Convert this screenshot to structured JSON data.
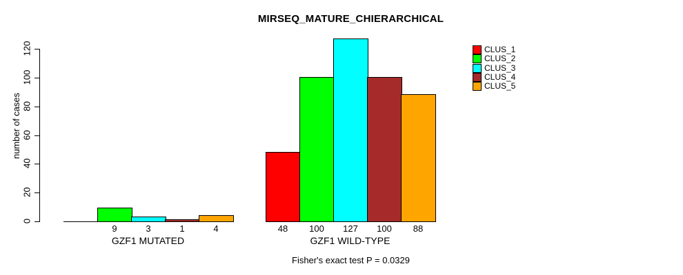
{
  "chart_data": {
    "type": "bar",
    "title": "MIRSEQ_MATURE_CHIERARCHICAL",
    "ylabel": "number of cases",
    "xlabel": "",
    "annotation": "Fisher's exact test P = 0.0329",
    "groups": [
      "GZF1 MUTATED",
      "GZF1 WILD-TYPE"
    ],
    "series": [
      {
        "name": "CLUS_1",
        "color": "#FF0000",
        "values": [
          0,
          48
        ]
      },
      {
        "name": "CLUS_2",
        "color": "#00FF00",
        "values": [
          9,
          100
        ]
      },
      {
        "name": "CLUS_3",
        "color": "#00FFFF",
        "values": [
          3,
          127
        ]
      },
      {
        "name": "CLUS_4",
        "color": "#A52A2A",
        "values": [
          1,
          100
        ]
      },
      {
        "name": "CLUS_5",
        "color": "#FFA500",
        "values": [
          4,
          88
        ]
      }
    ],
    "bar_value_labels": [
      [
        "",
        "9",
        "3",
        "1",
        "4"
      ],
      [
        "48",
        "100",
        "127",
        "100",
        "88"
      ]
    ],
    "yticks": [
      0,
      20,
      40,
      60,
      80,
      100,
      120
    ],
    "ylim": [
      0,
      127
    ],
    "grid": false,
    "legend_position": "right-inside",
    "bar_border_color": "#000000",
    "axis_color": "#000000",
    "background_color": "#FFFFFF"
  }
}
